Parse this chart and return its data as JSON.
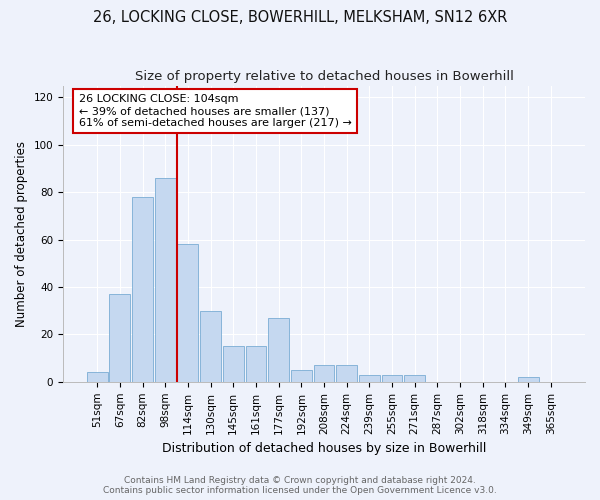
{
  "title": "26, LOCKING CLOSE, BOWERHILL, MELKSHAM, SN12 6XR",
  "subtitle": "Size of property relative to detached houses in Bowerhill",
  "xlabel": "Distribution of detached houses by size in Bowerhill",
  "ylabel": "Number of detached properties",
  "categories": [
    "51sqm",
    "67sqm",
    "82sqm",
    "98sqm",
    "114sqm",
    "130sqm",
    "145sqm",
    "161sqm",
    "177sqm",
    "192sqm",
    "208sqm",
    "224sqm",
    "239sqm",
    "255sqm",
    "271sqm",
    "287sqm",
    "302sqm",
    "318sqm",
    "334sqm",
    "349sqm",
    "365sqm"
  ],
  "values": [
    4,
    37,
    78,
    86,
    58,
    30,
    15,
    15,
    27,
    5,
    7,
    7,
    3,
    3,
    3,
    0,
    0,
    0,
    0,
    2,
    0
  ],
  "bar_color": "#c5d8f0",
  "bar_edge_color": "#7aadd4",
  "vline_x": 3.5,
  "vline_color": "#cc0000",
  "annotation_text": "26 LOCKING CLOSE: 104sqm\n← 39% of detached houses are smaller (137)\n61% of semi-detached houses are larger (217) →",
  "annotation_box_color": "#ffffff",
  "annotation_box_edge": "#cc0000",
  "ylim": [
    0,
    125
  ],
  "yticks": [
    0,
    20,
    40,
    60,
    80,
    100,
    120
  ],
  "footer": "Contains HM Land Registry data © Crown copyright and database right 2024.\nContains public sector information licensed under the Open Government Licence v3.0.",
  "bg_color": "#eef2fb",
  "grid_color": "#ffffff",
  "title_fontsize": 10.5,
  "subtitle_fontsize": 9.5,
  "footer_fontsize": 6.5,
  "xlabel_fontsize": 9,
  "ylabel_fontsize": 8.5,
  "tick_fontsize": 7.5,
  "annot_fontsize": 8
}
